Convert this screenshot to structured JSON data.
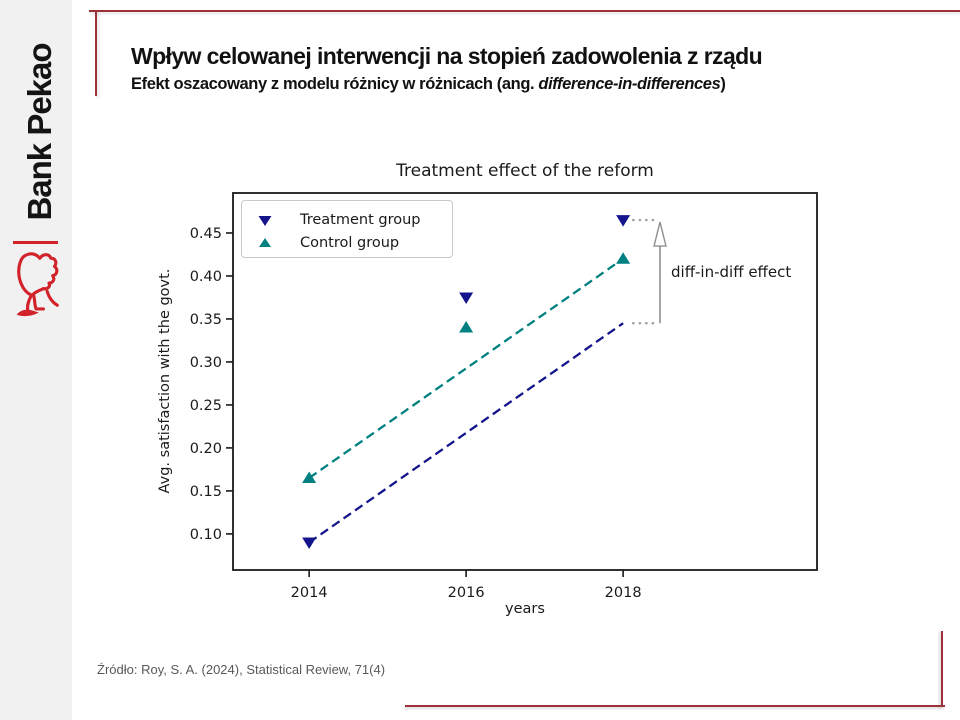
{
  "slide": {
    "logo_text": "Bank Pekao",
    "title": "Wpływ celowanej interwencji na stopień zadowolenia z rządu",
    "subtitle_prefix": "Efekt oszacowany z modelu różnicy w różnicach (ang. ",
    "subtitle_italic": "difference-in-differences",
    "subtitle_suffix": ")",
    "source": "Źródło: Roy, S. A. (2024), Statistical Review, 71(4)",
    "sidebar_bg": "#f1f1f2",
    "accent_red": "#9d3039",
    "logo_red": "#d2232a"
  },
  "chart_data": {
    "type": "scatter",
    "title": "Treatment effect of the reform",
    "xlabel": "years",
    "ylabel": "Avg. satisfaction with the govt.",
    "x": [
      2014,
      2016,
      2018
    ],
    "series": [
      {
        "name": "Treatment group",
        "marker": "triangle-down",
        "color": "#14148c",
        "values": [
          0.09,
          0.375,
          0.465
        ]
      },
      {
        "name": "Control group",
        "marker": "triangle-up",
        "color": "#008080",
        "values": [
          0.165,
          0.34,
          0.42
        ]
      }
    ],
    "trend_lines": [
      {
        "name": "control-trend",
        "color": "#008080",
        "style": "dashed",
        "x": [
          2014,
          2018
        ],
        "y": [
          0.165,
          0.42
        ]
      },
      {
        "name": "treatment-counterfactual",
        "color": "#14148c",
        "style": "dashed",
        "x": [
          2014,
          2018
        ],
        "y": [
          0.09,
          0.345
        ]
      }
    ],
    "annotation": {
      "label": "diff-in-diff effect",
      "arrow_x": 2018.47,
      "arrow_y_from": 0.345,
      "arrow_y_to": 0.465,
      "connector_color": "#a3a3a3",
      "arrow_color": "#8f8f8f"
    },
    "xticks": [
      2014,
      2016,
      2018
    ],
    "yticks": [
      0.1,
      0.15,
      0.2,
      0.25,
      0.3,
      0.35,
      0.4,
      0.45
    ],
    "xlim": [
      2013.03,
      2020.47
    ],
    "ylim": [
      0.058,
      0.4965
    ],
    "grid": false,
    "legend_position": "upper left",
    "diff_in_diff_estimate": 0.12
  }
}
